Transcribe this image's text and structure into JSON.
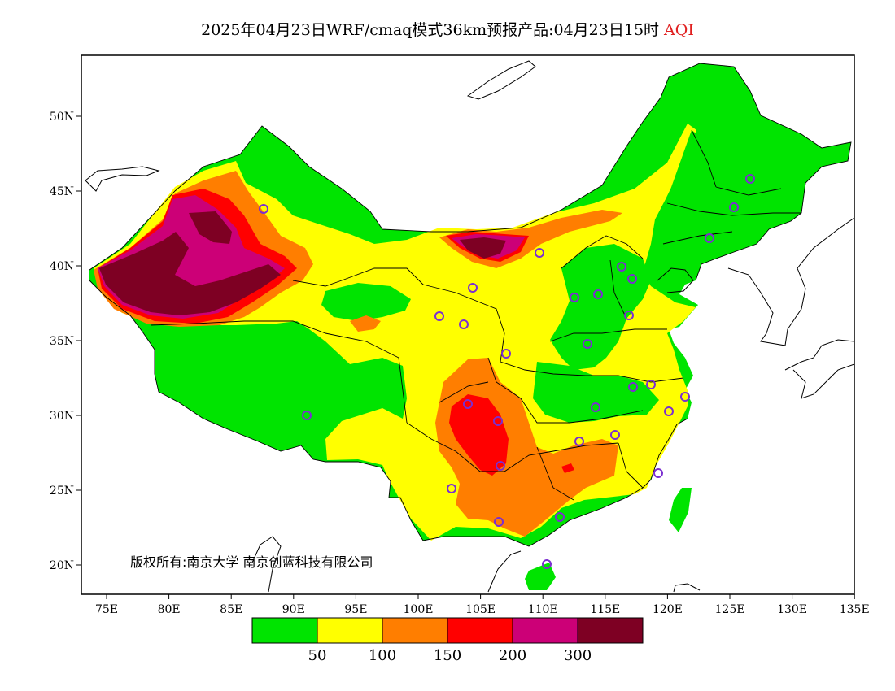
{
  "title": {
    "main": "2025年04月23日WRF/cmaq模式36km预报产品:04月23日15时",
    "highlight": "AQI"
  },
  "axes": {
    "lon_ticks": [
      "75E",
      "80E",
      "85E",
      "90E",
      "95E",
      "100E",
      "105E",
      "110E",
      "115E",
      "120E",
      "125E",
      "130E",
      "135E"
    ],
    "lat_ticks": [
      "50N",
      "45N",
      "40N",
      "35N",
      "30N",
      "25N",
      "20N"
    ]
  },
  "copyright": "版权所有:南京大学 南京创蓝科技有限公司",
  "legend": {
    "colors": [
      "#00e400",
      "#ffff00",
      "#ff7e00",
      "#ff0000",
      "#cc0077",
      "#7e0023"
    ],
    "labels": [
      "50",
      "100",
      "150",
      "200",
      "300"
    ]
  },
  "colors": {
    "good": "#00e400",
    "moderate": "#ffff00",
    "usg": "#ff7e00",
    "unhealthy": "#ff0000",
    "very_unhealthy": "#cc0077",
    "hazardous": "#7e0023",
    "station_marker": "#7b2fd0"
  }
}
